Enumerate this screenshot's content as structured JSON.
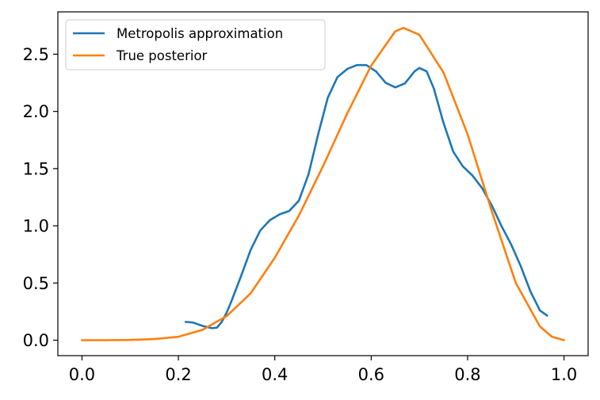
{
  "chart_data": {
    "type": "line",
    "title": "",
    "xlabel": "",
    "ylabel": "",
    "xlim": [
      -0.05,
      1.05
    ],
    "ylim": [
      -0.135,
      2.87
    ],
    "xticks": [
      0.0,
      0.2,
      0.4,
      0.6,
      0.8,
      1.0
    ],
    "xtick_labels": [
      "0.0",
      "0.2",
      "0.4",
      "0.6",
      "0.8",
      "1.0"
    ],
    "yticks": [
      0.0,
      0.5,
      1.0,
      1.5,
      2.0,
      2.5
    ],
    "ytick_labels": [
      "0.0",
      "0.5",
      "1.0",
      "1.5",
      "2.0",
      "2.5"
    ],
    "grid": false,
    "legend": "upper-left",
    "series": [
      {
        "name": "Metropolis approximation",
        "color": "#1f77b4",
        "points": [
          [
            0.215,
            0.16
          ],
          [
            0.23,
            0.155
          ],
          [
            0.25,
            0.125
          ],
          [
            0.27,
            0.105
          ],
          [
            0.28,
            0.11
          ],
          [
            0.29,
            0.16
          ],
          [
            0.3,
            0.24
          ],
          [
            0.31,
            0.34
          ],
          [
            0.33,
            0.56
          ],
          [
            0.35,
            0.79
          ],
          [
            0.37,
            0.96
          ],
          [
            0.39,
            1.05
          ],
          [
            0.41,
            1.1
          ],
          [
            0.43,
            1.13
          ],
          [
            0.45,
            1.22
          ],
          [
            0.47,
            1.45
          ],
          [
            0.49,
            1.8
          ],
          [
            0.51,
            2.12
          ],
          [
            0.53,
            2.3
          ],
          [
            0.55,
            2.37
          ],
          [
            0.57,
            2.405
          ],
          [
            0.59,
            2.405
          ],
          [
            0.61,
            2.35
          ],
          [
            0.63,
            2.25
          ],
          [
            0.65,
            2.21
          ],
          [
            0.67,
            2.245
          ],
          [
            0.69,
            2.35
          ],
          [
            0.7,
            2.38
          ],
          [
            0.715,
            2.35
          ],
          [
            0.73,
            2.2
          ],
          [
            0.75,
            1.9
          ],
          [
            0.77,
            1.65
          ],
          [
            0.79,
            1.52
          ],
          [
            0.81,
            1.44
          ],
          [
            0.83,
            1.33
          ],
          [
            0.85,
            1.18
          ],
          [
            0.87,
            1.0
          ],
          [
            0.89,
            0.84
          ],
          [
            0.91,
            0.65
          ],
          [
            0.93,
            0.43
          ],
          [
            0.95,
            0.26
          ],
          [
            0.965,
            0.215
          ]
        ]
      },
      {
        "name": "True posterior",
        "color": "#ff7f0e",
        "points": [
          [
            0.0,
            0.0
          ],
          [
            0.05,
            0.0
          ],
          [
            0.1,
            0.002
          ],
          [
            0.15,
            0.01
          ],
          [
            0.2,
            0.03
          ],
          [
            0.25,
            0.09
          ],
          [
            0.3,
            0.21
          ],
          [
            0.35,
            0.41
          ],
          [
            0.4,
            0.72
          ],
          [
            0.45,
            1.09
          ],
          [
            0.5,
            1.52
          ],
          [
            0.55,
            1.98
          ],
          [
            0.6,
            2.4
          ],
          [
            0.65,
            2.7
          ],
          [
            0.667,
            2.73
          ],
          [
            0.7,
            2.67
          ],
          [
            0.75,
            2.34
          ],
          [
            0.8,
            1.8
          ],
          [
            0.85,
            1.13
          ],
          [
            0.9,
            0.5
          ],
          [
            0.95,
            0.12
          ],
          [
            0.975,
            0.03
          ],
          [
            1.0,
            0.0
          ]
        ]
      }
    ]
  }
}
